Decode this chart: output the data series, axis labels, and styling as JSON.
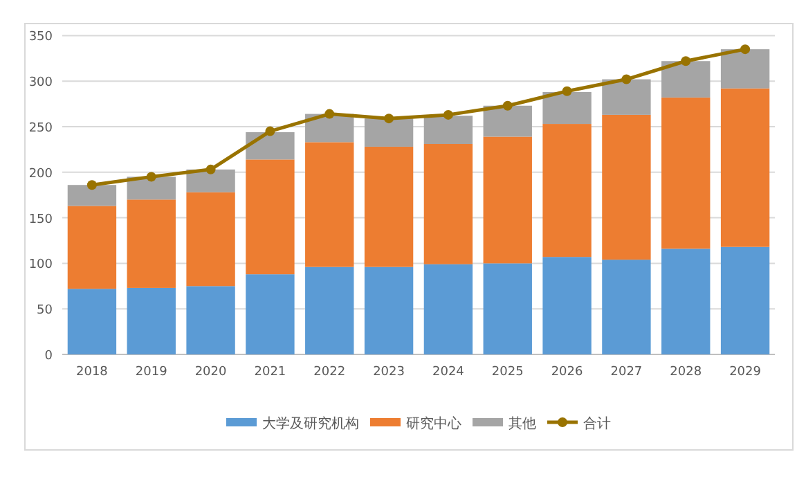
{
  "chart_data": {
    "type": "bar",
    "stacked": true,
    "categories": [
      "2018",
      "2019",
      "2020",
      "2021",
      "2022",
      "2023",
      "2024",
      "2025",
      "2026",
      "2027",
      "2028",
      "2029"
    ],
    "series": [
      {
        "name": "大学及研究机构",
        "color": "#5b9bd5",
        "values": [
          72,
          73,
          75,
          88,
          96,
          96,
          99,
          100,
          107,
          104,
          116,
          118
        ]
      },
      {
        "name": "研究中心",
        "color": "#ed7d31",
        "values": [
          91,
          97,
          103,
          126,
          137,
          132,
          132,
          139,
          146,
          159,
          166,
          174
        ]
      },
      {
        "name": "其他",
        "color": "#a5a5a5",
        "values": [
          23,
          25,
          25,
          30,
          31,
          31,
          31,
          34,
          35,
          39,
          40,
          43
        ]
      },
      {
        "name": "合计",
        "color": "#997300",
        "type": "line",
        "marker": "circle",
        "values": [
          186,
          195,
          203,
          245,
          264,
          259,
          263,
          273,
          289,
          302,
          322,
          335
        ]
      }
    ],
    "ylim": [
      0,
      350
    ],
    "yticks": [
      0,
      50,
      100,
      150,
      200,
      250,
      300,
      350
    ],
    "grid": "y",
    "legend": "bottom"
  }
}
